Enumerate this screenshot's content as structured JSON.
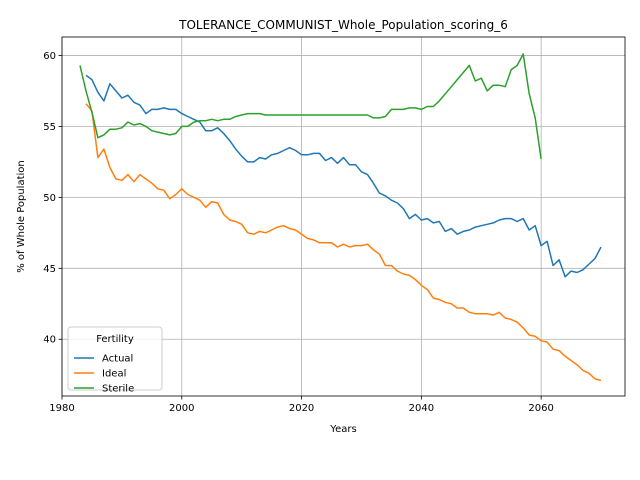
{
  "chart_data": {
    "type": "line",
    "title": "TOLERANCE_COMMUNIST_Whole_Population_scoring_6",
    "xlabel": "Years",
    "ylabel": "% of Whole Population",
    "xlim": [
      1980,
      2074
    ],
    "ylim": [
      36,
      61.3
    ],
    "xticks": [
      1980,
      2000,
      2020,
      2040,
      2060
    ],
    "yticks": [
      40,
      45,
      50,
      55,
      60
    ],
    "grid": true,
    "legend": {
      "title": "Fertility",
      "position": "lower-left"
    },
    "series": [
      {
        "name": "Actual",
        "color": "#1f77b4",
        "x": [
          1984,
          1985,
          1986,
          1987,
          1988,
          1989,
          1990,
          1991,
          1992,
          1993,
          1994,
          1995,
          1996,
          1997,
          1998,
          1999,
          2000,
          2001,
          2002,
          2003,
          2004,
          2005,
          2006,
          2007,
          2008,
          2009,
          2010,
          2011,
          2012,
          2013,
          2014,
          2015,
          2016,
          2017,
          2018,
          2019,
          2020,
          2021,
          2022,
          2023,
          2024,
          2025,
          2026,
          2027,
          2028,
          2029,
          2030,
          2031,
          2032,
          2033,
          2034,
          2035,
          2036,
          2037,
          2038,
          2039,
          2040,
          2041,
          2042,
          2043,
          2044,
          2045,
          2046,
          2047,
          2048,
          2049,
          2050,
          2051,
          2052,
          2053,
          2054,
          2055,
          2056,
          2057,
          2058,
          2059,
          2060,
          2061,
          2062,
          2063,
          2064,
          2065,
          2066,
          2067,
          2068,
          2069,
          2070
        ],
        "values": [
          58.6,
          58.3,
          57.4,
          56.8,
          58.0,
          57.5,
          57.0,
          57.2,
          56.7,
          56.5,
          55.9,
          56.2,
          56.2,
          56.3,
          56.2,
          56.2,
          55.9,
          55.7,
          55.5,
          55.3,
          54.7,
          54.7,
          54.9,
          54.5,
          54.0,
          53.4,
          52.9,
          52.5,
          52.5,
          52.8,
          52.7,
          53.0,
          53.1,
          53.3,
          53.5,
          53.3,
          53.0,
          53.0,
          53.1,
          53.1,
          52.6,
          52.8,
          52.4,
          52.8,
          52.3,
          52.3,
          51.8,
          51.6,
          51.0,
          50.3,
          50.1,
          49.8,
          49.6,
          49.2,
          48.5,
          48.8,
          48.4,
          48.5,
          48.2,
          48.3,
          47.6,
          47.8,
          47.4,
          47.6,
          47.7,
          47.9,
          48.0,
          48.1,
          48.2,
          48.4,
          48.5,
          48.5,
          48.3,
          48.5,
          47.7,
          48.0,
          46.6,
          46.9,
          45.2,
          45.6,
          44.4,
          44.8,
          44.7,
          44.9,
          45.3,
          45.7,
          46.5
        ]
      },
      {
        "name": "Ideal",
        "color": "#ff7f0e",
        "x": [
          1984,
          1985,
          1986,
          1987,
          1988,
          1989,
          1990,
          1991,
          1992,
          1993,
          1994,
          1995,
          1996,
          1997,
          1998,
          1999,
          2000,
          2001,
          2002,
          2003,
          2004,
          2005,
          2006,
          2007,
          2008,
          2009,
          2010,
          2011,
          2012,
          2013,
          2014,
          2015,
          2016,
          2017,
          2018,
          2019,
          2020,
          2021,
          2022,
          2023,
          2024,
          2025,
          2026,
          2027,
          2028,
          2029,
          2030,
          2031,
          2032,
          2033,
          2034,
          2035,
          2036,
          2037,
          2038,
          2039,
          2040,
          2041,
          2042,
          2043,
          2044,
          2045,
          2046,
          2047,
          2048,
          2049,
          2050,
          2051,
          2052,
          2053,
          2054,
          2055,
          2056,
          2057,
          2058,
          2059,
          2060,
          2061,
          2062,
          2063,
          2064,
          2065,
          2066,
          2067,
          2068,
          2069,
          2070
        ],
        "values": [
          56.6,
          56.1,
          52.8,
          53.4,
          52.1,
          51.3,
          51.2,
          51.6,
          51.1,
          51.6,
          51.3,
          51.0,
          50.6,
          50.5,
          49.9,
          50.2,
          50.6,
          50.2,
          50.0,
          49.8,
          49.3,
          49.7,
          49.6,
          48.8,
          48.4,
          48.3,
          48.1,
          47.5,
          47.4,
          47.6,
          47.5,
          47.7,
          47.9,
          48.0,
          47.8,
          47.7,
          47.4,
          47.1,
          47.0,
          46.8,
          46.8,
          46.8,
          46.5,
          46.7,
          46.5,
          46.6,
          46.6,
          46.7,
          46.3,
          46.0,
          45.2,
          45.2,
          44.8,
          44.6,
          44.5,
          44.2,
          43.8,
          43.5,
          42.9,
          42.8,
          42.6,
          42.5,
          42.2,
          42.2,
          41.9,
          41.8,
          41.8,
          41.8,
          41.7,
          41.9,
          41.5,
          41.4,
          41.2,
          40.8,
          40.3,
          40.2,
          39.9,
          39.8,
          39.3,
          39.2,
          38.8,
          38.5,
          38.2,
          37.8,
          37.6,
          37.2,
          37.1
        ]
      },
      {
        "name": "Sterile",
        "color": "#2ca02c",
        "x": [
          1983,
          1984,
          1985,
          1986,
          1987,
          1988,
          1989,
          1990,
          1991,
          1992,
          1993,
          1994,
          1995,
          1996,
          1997,
          1998,
          1999,
          2000,
          2001,
          2002,
          2003,
          2004,
          2005,
          2006,
          2007,
          2008,
          2009,
          2010,
          2011,
          2012,
          2013,
          2014,
          2015,
          2016,
          2017,
          2018,
          2019,
          2020,
          2021,
          2022,
          2023,
          2024,
          2025,
          2026,
          2027,
          2028,
          2029,
          2030,
          2031,
          2032,
          2033,
          2034,
          2035,
          2036,
          2037,
          2038,
          2039,
          2040,
          2041,
          2042,
          2043,
          2044,
          2045,
          2046,
          2047,
          2048,
          2049,
          2050,
          2051,
          2052,
          2053,
          2054,
          2055,
          2056,
          2057,
          2058,
          2059,
          2060
        ],
        "values": [
          59.3,
          57.5,
          56.0,
          54.2,
          54.4,
          54.8,
          54.8,
          54.9,
          55.3,
          55.1,
          55.2,
          55.0,
          54.7,
          54.6,
          54.5,
          54.4,
          54.5,
          55.0,
          55.0,
          55.3,
          55.4,
          55.4,
          55.5,
          55.4,
          55.5,
          55.5,
          55.7,
          55.8,
          55.9,
          55.9,
          55.9,
          55.8,
          55.8,
          55.8,
          55.8,
          55.8,
          55.8,
          55.8,
          55.8,
          55.8,
          55.8,
          55.8,
          55.8,
          55.8,
          55.8,
          55.8,
          55.8,
          55.8,
          55.8,
          55.6,
          55.6,
          55.7,
          56.2,
          56.2,
          56.2,
          56.3,
          56.3,
          56.2,
          56.4,
          56.4,
          56.8,
          57.3,
          57.8,
          58.3,
          58.8,
          59.3,
          58.2,
          58.4,
          57.5,
          57.9,
          57.9,
          57.8,
          59.0,
          59.3,
          60.1,
          57.3,
          55.6,
          52.7
        ]
      }
    ]
  }
}
